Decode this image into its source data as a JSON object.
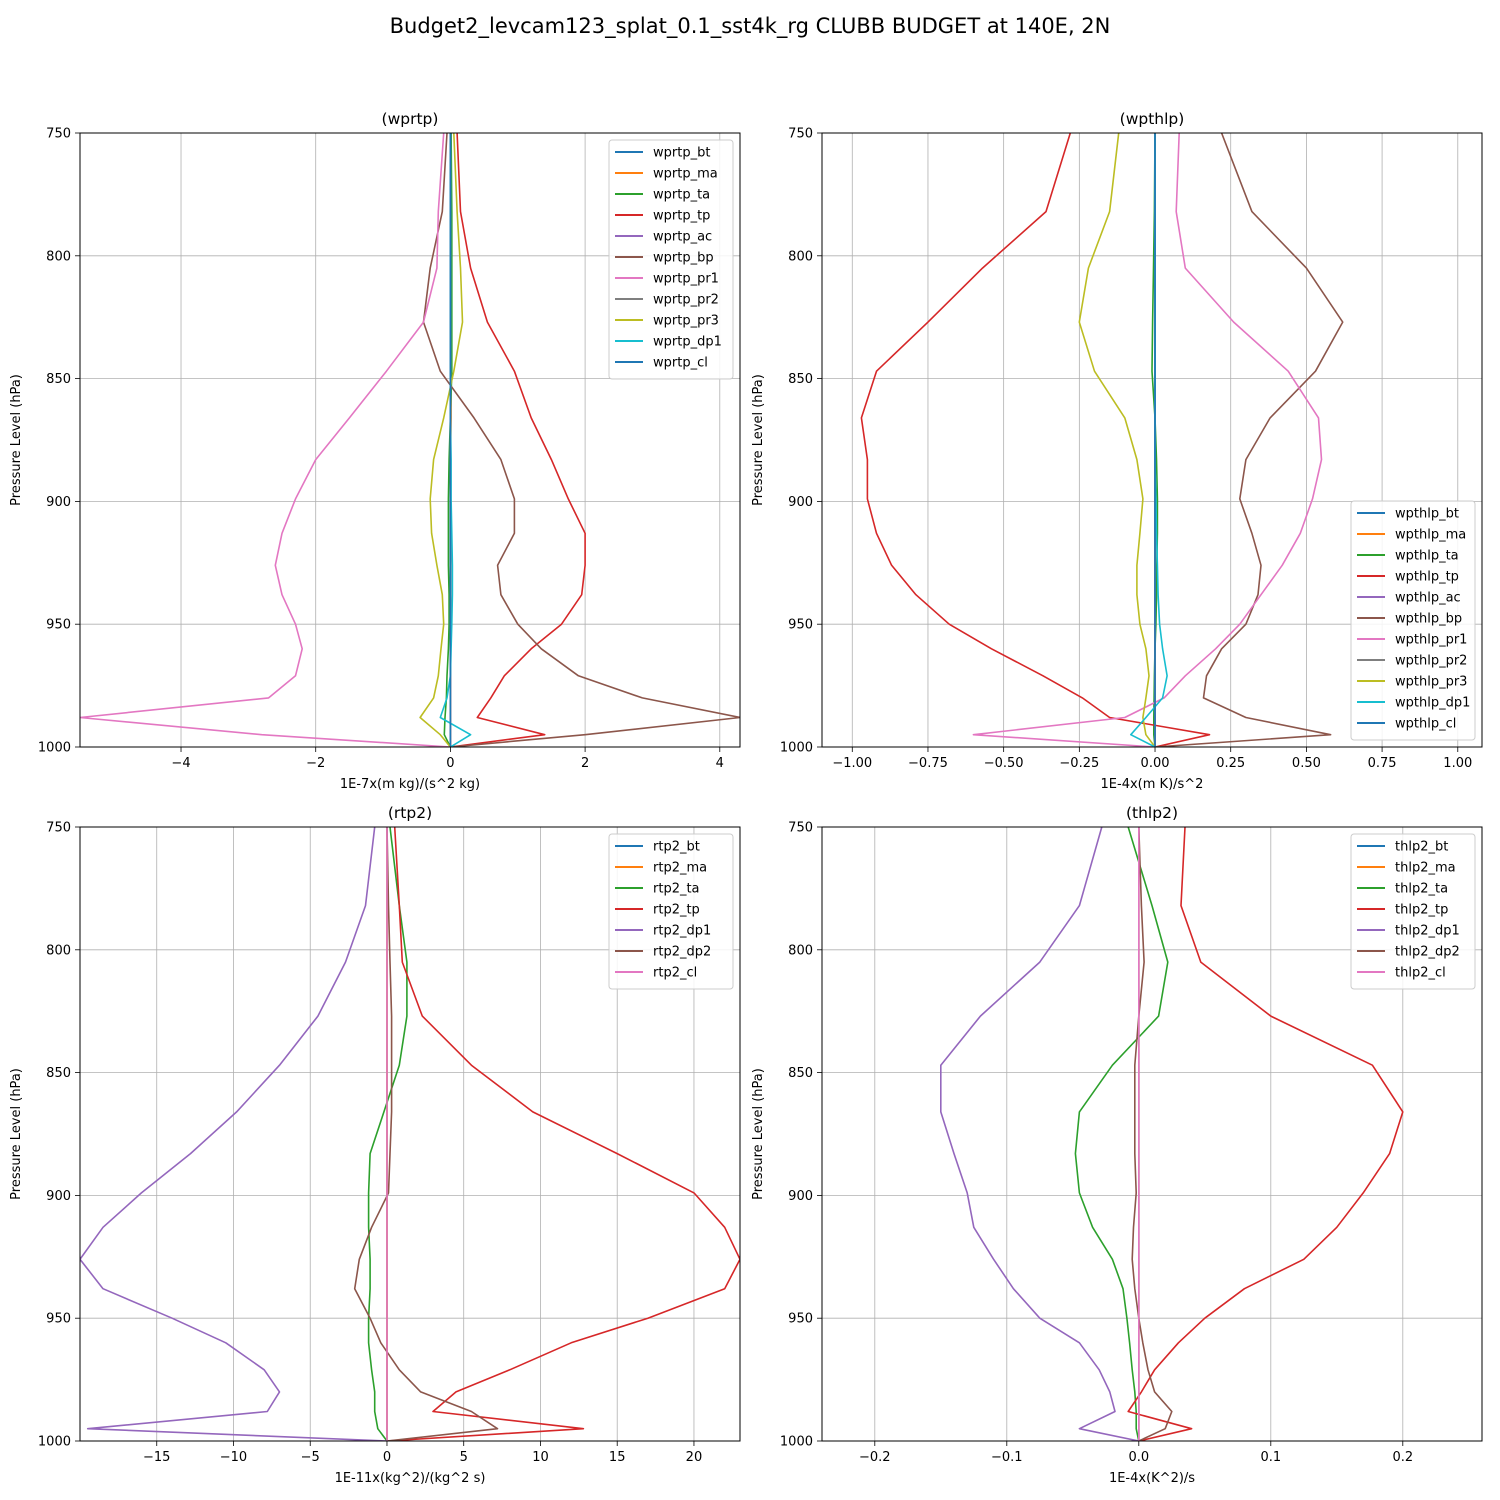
{
  "figure": {
    "title": "Budget2_levcam123_splat_0.1_sst4k_rg CLUBB BUDGET at 140E, 2N"
  },
  "colors": {
    "C0": "#1f77b4",
    "C1": "#ff7f0e",
    "C2": "#2ca02c",
    "C3": "#d62728",
    "C4": "#9467bd",
    "C5": "#8c564b",
    "C6": "#e377c2",
    "C7": "#7f7f7f",
    "C8": "#bcbd22",
    "C9": "#17becf",
    "grid": "#b0b0b0"
  },
  "chart_data": [
    {
      "type": "line",
      "title": "(wprtp)",
      "xlabel": "1E-7x(m kg)/(s^2 kg)",
      "ylabel": "Pressure Level (hPa)",
      "xlim": [
        -5.5,
        4.3
      ],
      "ylim": [
        1000,
        750
      ],
      "xticks": [
        -4,
        -2,
        0,
        2,
        4
      ],
      "xtick_labels": [
        "−4",
        "−2",
        "0",
        "2",
        "4"
      ],
      "yticks": [
        750,
        800,
        850,
        900,
        950,
        1000
      ],
      "grid": true,
      "legend_position": "upper right",
      "levels": [
        750,
        782,
        805,
        827,
        847,
        866,
        883,
        899,
        913,
        926,
        938,
        950,
        960,
        971,
        980,
        988,
        995,
        1000
      ],
      "series": [
        {
          "name": "wprtp_bt",
          "color": "C0",
          "values": [
            0,
            0,
            0,
            0,
            0,
            0,
            0,
            0,
            0,
            0,
            0,
            0,
            0,
            0,
            0,
            0,
            0,
            0
          ]
        },
        {
          "name": "wprtp_ma",
          "color": "C1",
          "values": [
            0.01,
            0.01,
            0.01,
            0.01,
            0.01,
            0.01,
            0,
            0,
            0,
            0,
            0,
            0,
            0,
            0,
            0,
            0,
            0,
            0
          ]
        },
        {
          "name": "wprtp_ta",
          "color": "C2",
          "values": [
            0.01,
            0.02,
            0.02,
            0.02,
            0.02,
            0.0,
            -0.02,
            -0.03,
            -0.03,
            -0.03,
            -0.02,
            -0.02,
            -0.03,
            -0.05,
            -0.06,
            -0.08,
            -0.09,
            0
          ]
        },
        {
          "name": "wprtp_tp",
          "color": "C3",
          "values": [
            0.1,
            0.15,
            0.3,
            0.55,
            0.95,
            1.2,
            1.5,
            1.75,
            2.0,
            2.0,
            1.95,
            1.65,
            1.2,
            0.8,
            0.6,
            0.4,
            1.4,
            0
          ]
        },
        {
          "name": "wprtp_ac",
          "color": "C4",
          "values": [
            0,
            0,
            0,
            0,
            0,
            0,
            0,
            0,
            0,
            0,
            0,
            0,
            0,
            0,
            0,
            0,
            0,
            0
          ]
        },
        {
          "name": "wprtp_bp",
          "color": "C5",
          "values": [
            -0.05,
            -0.12,
            -0.3,
            -0.4,
            -0.15,
            0.35,
            0.75,
            0.95,
            0.95,
            0.7,
            0.75,
            1.0,
            1.35,
            1.9,
            2.85,
            4.3,
            2.0,
            0
          ]
        },
        {
          "name": "wprtp_pr1",
          "color": "C6",
          "values": [
            -0.1,
            -0.18,
            -0.2,
            -0.4,
            -0.95,
            -1.5,
            -2.0,
            -2.3,
            -2.5,
            -2.6,
            -2.5,
            -2.3,
            -2.2,
            -2.3,
            -2.7,
            -5.5,
            -2.8,
            0
          ]
        },
        {
          "name": "wprtp_pr2",
          "color": "C7",
          "values": [
            0,
            0,
            0,
            0,
            0,
            0,
            0,
            0,
            0,
            0,
            0,
            0,
            0,
            0,
            0,
            0,
            0,
            0
          ]
        },
        {
          "name": "wprtp_pr3",
          "color": "C8",
          "values": [
            0.05,
            0.1,
            0.15,
            0.18,
            0.05,
            -0.1,
            -0.25,
            -0.3,
            -0.28,
            -0.2,
            -0.12,
            -0.1,
            -0.14,
            -0.18,
            -0.25,
            -0.45,
            -0.15,
            0
          ]
        },
        {
          "name": "wprtp_dp1",
          "color": "C9",
          "values": [
            0,
            0,
            0,
            0,
            0,
            0,
            0.01,
            0.01,
            0.02,
            0.03,
            0.03,
            0.02,
            0.01,
            0,
            -0.05,
            -0.15,
            0.3,
            0
          ]
        },
        {
          "name": "wprtp_cl",
          "color": "C0",
          "values": [
            0,
            0,
            0,
            0,
            0,
            0,
            0,
            0,
            0,
            0,
            0,
            0,
            0,
            0,
            0,
            0,
            0,
            0
          ]
        }
      ]
    },
    {
      "type": "line",
      "title": "(wpthlp)",
      "xlabel": "1E-4x(m K)/s^2",
      "ylabel": "Pressure Level (hPa)",
      "xlim": [
        -1.1,
        1.08
      ],
      "ylim": [
        1000,
        750
      ],
      "xticks": [
        -1.0,
        -0.75,
        -0.5,
        -0.25,
        0.0,
        0.25,
        0.5,
        0.75,
        1.0
      ],
      "xtick_labels": [
        "−1.00",
        "−0.75",
        "−0.50",
        "−0.25",
        "0.00",
        "0.25",
        "0.50",
        "0.75",
        "1.00"
      ],
      "yticks": [
        750,
        800,
        850,
        900,
        950,
        1000
      ],
      "grid": true,
      "legend_position": "lower right",
      "levels": [
        750,
        782,
        805,
        827,
        847,
        866,
        883,
        899,
        913,
        926,
        938,
        950,
        960,
        971,
        980,
        988,
        995,
        1000
      ],
      "series": [
        {
          "name": "wpthlp_bt",
          "color": "C0",
          "values": [
            0,
            0,
            0,
            0,
            0,
            0,
            0,
            0,
            0,
            0,
            0,
            0,
            0,
            0,
            0,
            0,
            0,
            0
          ]
        },
        {
          "name": "wpthlp_ma",
          "color": "C1",
          "values": [
            0,
            0,
            0,
            0,
            0,
            0,
            0,
            0,
            0,
            0,
            0,
            0,
            0,
            0,
            0,
            0,
            0,
            0
          ]
        },
        {
          "name": "wpthlp_ta",
          "color": "C2",
          "values": [
            0,
            -0.002,
            -0.005,
            -0.008,
            -0.01,
            0,
            0.005,
            0.008,
            0.008,
            0.006,
            0.005,
            0.003,
            0,
            -0.002,
            -0.003,
            -0.004,
            -0.004,
            0
          ]
        },
        {
          "name": "wpthlp_tp",
          "color": "C3",
          "values": [
            -0.28,
            -0.36,
            -0.57,
            -0.75,
            -0.92,
            -0.97,
            -0.95,
            -0.95,
            -0.92,
            -0.87,
            -0.79,
            -0.68,
            -0.54,
            -0.37,
            -0.24,
            -0.15,
            0.18,
            0
          ]
        },
        {
          "name": "wpthlp_ac",
          "color": "C4",
          "values": [
            0,
            0,
            0,
            0,
            0,
            0,
            0,
            0,
            0,
            0,
            0,
            0,
            0,
            0,
            0,
            0,
            0,
            0
          ]
        },
        {
          "name": "wpthlp_bp",
          "color": "C5",
          "values": [
            0.22,
            0.32,
            0.5,
            0.62,
            0.53,
            0.38,
            0.3,
            0.28,
            0.32,
            0.35,
            0.34,
            0.3,
            0.22,
            0.17,
            0.16,
            0.3,
            0.58,
            0
          ]
        },
        {
          "name": "wpthlp_pr1",
          "color": "C6",
          "values": [
            0.08,
            0.07,
            0.1,
            0.26,
            0.44,
            0.54,
            0.55,
            0.52,
            0.48,
            0.42,
            0.35,
            0.28,
            0.2,
            0.1,
            0.03,
            -0.1,
            -0.6,
            0
          ]
        },
        {
          "name": "wpthlp_pr2",
          "color": "C7",
          "values": [
            0,
            0,
            0,
            0,
            0,
            0,
            0,
            0,
            0,
            0,
            0,
            0,
            0,
            0,
            0,
            0,
            0,
            0
          ]
        },
        {
          "name": "wpthlp_pr3",
          "color": "C8",
          "values": [
            -0.12,
            -0.15,
            -0.22,
            -0.25,
            -0.2,
            -0.1,
            -0.06,
            -0.04,
            -0.05,
            -0.06,
            -0.06,
            -0.05,
            -0.03,
            -0.02,
            -0.03,
            -0.04,
            -0.03,
            0
          ]
        },
        {
          "name": "wpthlp_dp1",
          "color": "C9",
          "values": [
            0,
            0,
            0,
            0,
            0,
            0,
            0,
            0.003,
            0.005,
            0.008,
            0.01,
            0.015,
            0.025,
            0.04,
            0.025,
            -0.03,
            -0.08,
            0
          ]
        },
        {
          "name": "wpthlp_cl",
          "color": "C0",
          "values": [
            0,
            0,
            0,
            0,
            0,
            0,
            0,
            0,
            0,
            0,
            0,
            0,
            0,
            0,
            0,
            0,
            0,
            0
          ]
        }
      ]
    },
    {
      "type": "line",
      "title": "(rtp2)",
      "xlabel": "1E-11x(kg^2)/(kg^2 s)",
      "ylabel": "Pressure Level (hPa)",
      "xlim": [
        -20,
        23
      ],
      "ylim": [
        1000,
        750
      ],
      "xticks": [
        -15,
        -10,
        -5,
        0,
        5,
        10,
        15,
        20
      ],
      "xtick_labels": [
        "−15",
        "−10",
        "−5",
        "0",
        "5",
        "10",
        "15",
        "20"
      ],
      "yticks": [
        750,
        800,
        850,
        900,
        950,
        1000
      ],
      "grid": true,
      "legend_position": "upper right",
      "levels": [
        750,
        782,
        805,
        827,
        847,
        866,
        883,
        899,
        913,
        926,
        938,
        950,
        960,
        971,
        980,
        988,
        995,
        1000
      ],
      "series": [
        {
          "name": "rtp2_bt",
          "color": "C0",
          "values": [
            0,
            0,
            0,
            0,
            0,
            0,
            0,
            0,
            0,
            0,
            0,
            0,
            0,
            0,
            0,
            0,
            0,
            0
          ]
        },
        {
          "name": "rtp2_ma",
          "color": "C1",
          "values": [
            0,
            0,
            0,
            0,
            0,
            0,
            0,
            0,
            0,
            0,
            0,
            0,
            0,
            0,
            0,
            0,
            0,
            0
          ]
        },
        {
          "name": "rtp2_ta",
          "color": "C2",
          "values": [
            0.2,
            0.8,
            1.3,
            1.3,
            0.8,
            -0.2,
            -1.1,
            -1.2,
            -1.2,
            -1.1,
            -1.1,
            -1.2,
            -1.2,
            -1.0,
            -0.8,
            -0.8,
            -0.6,
            0
          ]
        },
        {
          "name": "rtp2_tp",
          "color": "C3",
          "values": [
            0.5,
            0.8,
            1.0,
            2.3,
            5.5,
            9.5,
            15,
            20,
            22,
            23,
            22,
            17,
            12,
            8,
            4.5,
            3,
            12.8,
            0
          ]
        },
        {
          "name": "rtp2_dp1",
          "color": "C4",
          "values": [
            -0.8,
            -1.4,
            -2.7,
            -4.5,
            -7,
            -9.8,
            -12.8,
            -16,
            -18.5,
            -20,
            -18.5,
            -14,
            -10.5,
            -8,
            -7,
            -7.8,
            -19.5,
            0
          ]
        },
        {
          "name": "rtp2_dp2",
          "color": "C5",
          "values": [
            0,
            0.1,
            0.2,
            0.3,
            0.3,
            0.3,
            0.2,
            0.1,
            -1,
            -1.8,
            -2.1,
            -1.1,
            -0.4,
            0.8,
            2.2,
            5.5,
            7.2,
            0
          ]
        },
        {
          "name": "rtp2_cl",
          "color": "C6",
          "values": [
            0,
            0,
            0,
            0,
            0,
            0,
            0,
            0,
            0,
            0,
            0,
            0,
            0,
            0,
            0,
            0,
            0,
            0
          ]
        }
      ]
    },
    {
      "type": "line",
      "title": "(thlp2)",
      "xlabel": "1E-4x(K^2)/s",
      "ylabel": "Pressure Level (hPa)",
      "xlim": [
        -0.24,
        0.26
      ],
      "ylim": [
        1000,
        750
      ],
      "xticks": [
        -0.2,
        -0.1,
        0.0,
        0.1,
        0.2
      ],
      "xtick_labels": [
        "−0.2",
        "−0.1",
        "0.0",
        "0.1",
        "0.2"
      ],
      "yticks": [
        750,
        800,
        850,
        900,
        950,
        1000
      ],
      "grid": true,
      "legend_position": "upper right",
      "levels": [
        750,
        782,
        805,
        827,
        847,
        866,
        883,
        899,
        913,
        926,
        938,
        950,
        960,
        971,
        980,
        988,
        995,
        1000
      ],
      "series": [
        {
          "name": "thlp2_bt",
          "color": "C0",
          "values": [
            0,
            0,
            0,
            0,
            0,
            0,
            0,
            0,
            0,
            0,
            0,
            0,
            0,
            0,
            0,
            0,
            0,
            0
          ]
        },
        {
          "name": "thlp2_ma",
          "color": "C1",
          "values": [
            0,
            0,
            0,
            0,
            0,
            0,
            0,
            0,
            0,
            0,
            0,
            0,
            0,
            0,
            0,
            0,
            0,
            0
          ]
        },
        {
          "name": "thlp2_ta",
          "color": "C2",
          "values": [
            -0.008,
            0.01,
            0.022,
            0.015,
            -0.02,
            -0.045,
            -0.048,
            -0.045,
            -0.035,
            -0.02,
            -0.012,
            -0.009,
            -0.007,
            -0.005,
            -0.003,
            -0.002,
            -0.002,
            0
          ]
        },
        {
          "name": "thlp2_tp",
          "color": "C3",
          "values": [
            0.035,
            0.032,
            0.047,
            0.1,
            0.177,
            0.2,
            0.19,
            0.17,
            0.15,
            0.125,
            0.08,
            0.05,
            0.03,
            0.012,
            0.002,
            -0.008,
            0.04,
            0
          ]
        },
        {
          "name": "thlp2_dp1",
          "color": "C4",
          "values": [
            -0.028,
            -0.045,
            -0.075,
            -0.12,
            -0.15,
            -0.15,
            -0.14,
            -0.13,
            -0.125,
            -0.11,
            -0.095,
            -0.075,
            -0.045,
            -0.03,
            -0.022,
            -0.018,
            -0.045,
            0
          ]
        },
        {
          "name": "thlp2_dp2",
          "color": "C5",
          "values": [
            0,
            0.002,
            0.004,
            0,
            -0.003,
            -0.003,
            -0.003,
            -0.002,
            -0.004,
            -0.005,
            -0.003,
            0,
            0.003,
            0.007,
            0.012,
            0.025,
            0.02,
            0
          ]
        },
        {
          "name": "thlp2_cl",
          "color": "C6",
          "values": [
            0,
            0,
            0,
            0,
            0,
            0,
            0,
            0,
            0,
            0,
            0,
            0,
            0,
            0,
            0,
            0,
            0,
            0
          ]
        }
      ]
    }
  ]
}
